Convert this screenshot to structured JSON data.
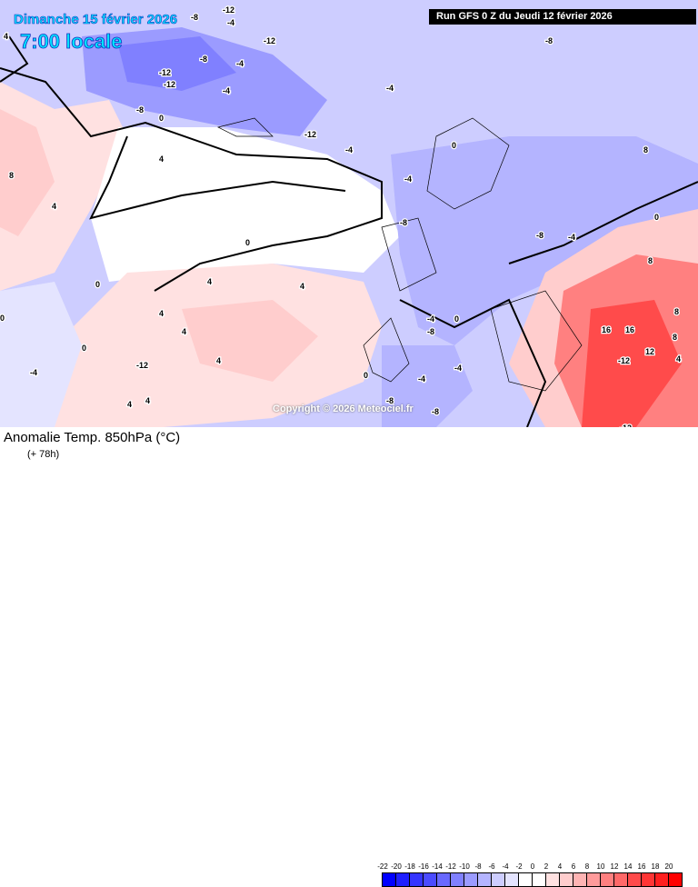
{
  "header": {
    "date": "Dimanche 15 février 2026",
    "time": "7:00 locale",
    "run": "Run GFS 0 Z du Jeudi 12 février 2026"
  },
  "map": {
    "copyright": "Copyright © 2026 Meteociel.fr",
    "contour_labels": [
      "-12",
      "-8",
      "-12",
      "-12",
      "-8",
      "-4",
      "-4",
      "-12",
      "-8",
      "0",
      "-12",
      "-4",
      "-4",
      "0",
      "4",
      "8",
      "4",
      "-4",
      "-8",
      "0",
      "4",
      "4",
      "0",
      "4",
      "8",
      "16",
      "16",
      "-12",
      "12",
      "8",
      "4",
      "-12",
      "8",
      "-4",
      "-8",
      "0",
      "4",
      "0",
      "-4",
      "-8",
      "0",
      "4",
      "4",
      "-4",
      "0",
      "-4",
      "-8",
      "4",
      "-12",
      "8",
      "-8",
      "-4",
      "4",
      "0",
      "-4",
      "-8"
    ]
  },
  "footer": {
    "title": "Anomalie Temp. 850hPa (°C)",
    "subtitle": "(+ 78h)"
  },
  "legend": {
    "ticks": [
      "-22",
      "-20",
      "-18",
      "-16",
      "-14",
      "-12",
      "-10",
      "-8",
      "-6",
      "-4",
      "-2",
      "0",
      "2",
      "4",
      "6",
      "8",
      "10",
      "12",
      "14",
      "16",
      "18",
      "20"
    ],
    "colors": [
      "#0000ff",
      "#1f1fff",
      "#3535ff",
      "#4b4bff",
      "#6969ff",
      "#8080ff",
      "#9b9bff",
      "#b4b4ff",
      "#cdcdff",
      "#e4e4ff",
      "#ffffff",
      "#ffffff",
      "#ffe1e1",
      "#ffcdcd",
      "#ffb4b4",
      "#ff9b9b",
      "#ff8080",
      "#ff6969",
      "#ff4b4b",
      "#ff3535",
      "#ff1f1f",
      "#ff0000"
    ]
  }
}
